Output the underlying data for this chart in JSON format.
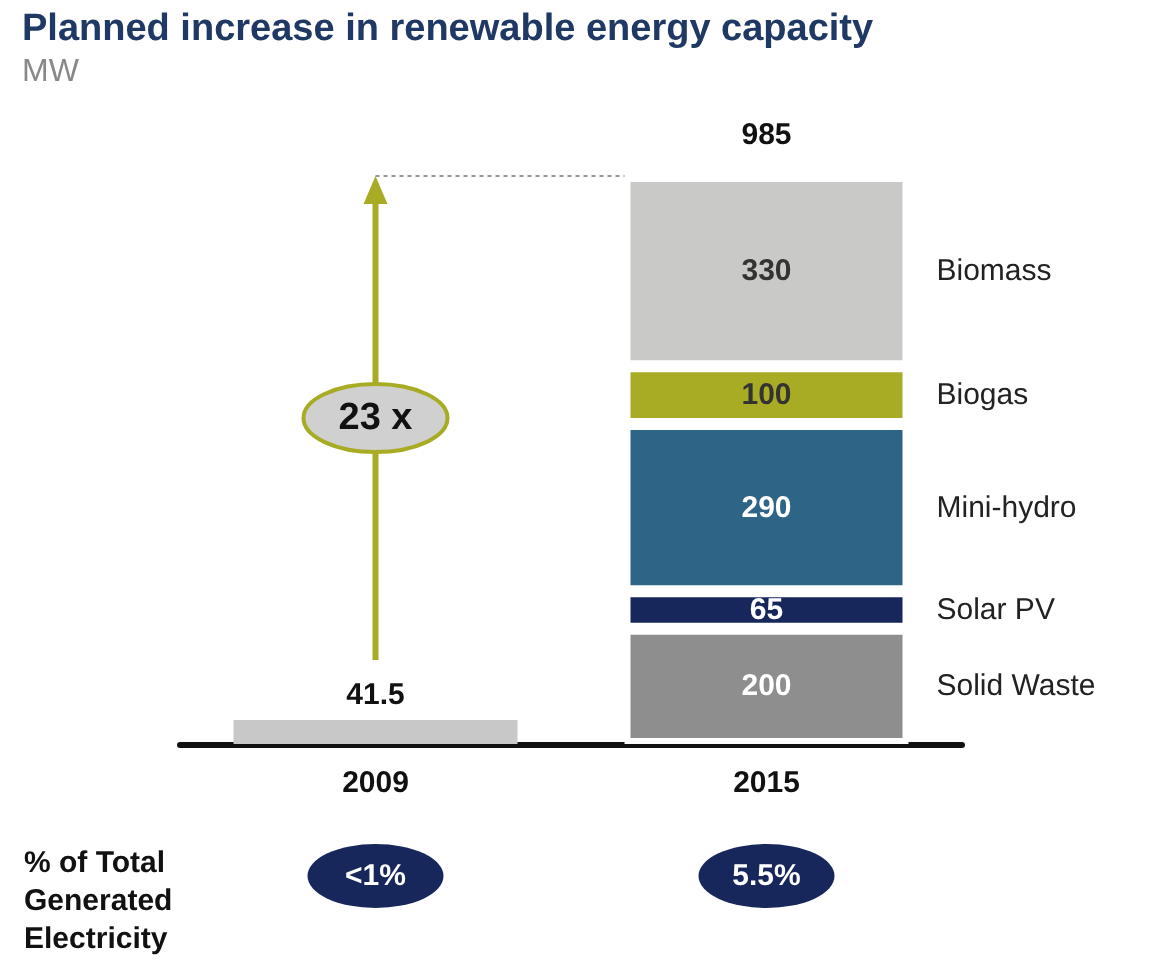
{
  "chart_data": {
    "type": "bar",
    "title": "Planned increase in renewable energy capacity",
    "subtitle": "MW",
    "categories": [
      "2009",
      "2015"
    ],
    "stacked": true,
    "tick_labels": "x",
    "data_labels": true,
    "totals": [
      null,
      "985"
    ],
    "series": [
      {
        "color": "#c8c8c8",
        "values": [
          41.5,
          null
        ]
      },
      {
        "name": "Solid Waste",
        "color": "#8e8e8e",
        "values": [
          null,
          200
        ]
      },
      {
        "name": "Solar PV",
        "color": "#17275c",
        "values": [
          null,
          65
        ]
      },
      {
        "name": "Mini-hydro",
        "color": "#2e6485",
        "values": [
          null,
          290
        ]
      },
      {
        "name": "Biogas",
        "color": "#a8ac24",
        "values": [
          null,
          100
        ]
      },
      {
        "name": "Biomass",
        "color": "#c9c9c7",
        "values": [
          null,
          330
        ]
      }
    ],
    "annotations": [
      "23 x",
      "% of Total Generated Electricity",
      "<1%",
      "5.5%"
    ]
  }
}
